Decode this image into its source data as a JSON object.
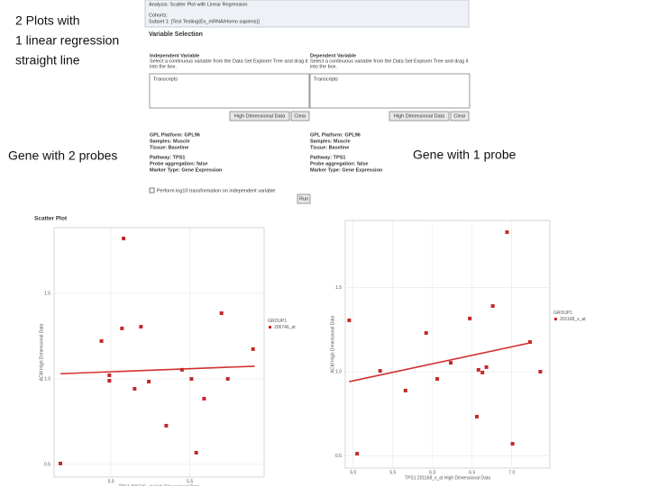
{
  "annotations": {
    "top_left": [
      "2 Plots with",
      "1 linear regression",
      "straight line"
    ],
    "left": "Gene with 2 probes",
    "right": "Gene with 1 probe"
  },
  "panel": {
    "title": "Analysis: Scatter Plot with Linear Regression",
    "cohorts_label": "Cohorts:",
    "cohorts_value": "Subset 1: [Test Testing(Ex_mRNA/Homo sapiens)]",
    "section": "Variable Selection",
    "independent": {
      "title": "Independent Variable",
      "description": [
        "Select a continuous variable from the Data Set Explorer Tree and drag it",
        "into the box."
      ],
      "box": "Transcripts",
      "button": "High Dimensional Data",
      "clear": "Clear",
      "info": [
        "GPL Platform: GPL96",
        "Samples: Muscle",
        "Tissue: Baseline",
        "Pathway: TPS1",
        "Probe aggregation: false",
        "Marker Type: Gene Expression"
      ]
    },
    "dependent": {
      "title": "Dependent Variable",
      "description": [
        "Select a continuous variable from the Data Set Explorer Tree and drag it",
        "into the box."
      ],
      "box": "Transcripts",
      "button": "High Dimensional Data",
      "clear": "Clear",
      "info": [
        "GPL Platform: GPL96",
        "Samples: Muscle",
        "Tissue: Baseline",
        "Pathway: TPS1",
        "Probe aggregation: false",
        "Marker Type: Gene Expression"
      ]
    },
    "checkbox": "Perform log10 transformation on independent variable",
    "run": "Run"
  },
  "chart_data": [
    {
      "type": "scatter",
      "title": "Scatter Plot",
      "x_label": "TPS1 206746_at High Dimensional Data",
      "y_label": "ACM High Dimensional Data",
      "legend_title": "GROUP1",
      "series": [
        {
          "name": "206746_at",
          "color": "#c62828",
          "x": [
            4.68,
            4.94,
            4.99,
            4.99,
            5.08,
            5.07,
            5.15,
            5.19,
            5.24,
            5.35,
            5.45,
            5.51,
            5.54,
            5.59,
            5.7,
            5.74,
            5.9
          ],
          "values": [
            0.505,
            1.221,
            1.021,
            0.989,
            1.821,
            1.295,
            0.942,
            1.305,
            0.984,
            0.726,
            1.053,
            1.0,
            0.568,
            0.884,
            1.384,
            1.0,
            1.174
          ]
        }
      ],
      "regression": {
        "color": "#d32f2f",
        "x": [
          4.68,
          5.91
        ],
        "y": [
          1.03,
          1.074
        ]
      },
      "xlim": [
        4.64,
        5.97
      ],
      "ylim": [
        0.426,
        1.884
      ],
      "xticks": [
        {
          "value": 5,
          "label": "5.0"
        },
        5.5
      ],
      "yticks": [
        0.5,
        {
          "value": 1,
          "label": "1.0"
        },
        1.5
      ],
      "grid": true
    },
    {
      "type": "scatter",
      "x_label": "TPS1 201168_x_at High Dimensional Data",
      "y_label": "ACM High Dimensional Data",
      "legend_title": "GROUP1",
      "series": [
        {
          "name": "201168_x_at",
          "color": "#c62828",
          "x": [
            4.95,
            5.05,
            5.34,
            5.66,
            5.92,
            6.06,
            6.23,
            6.47,
            6.56,
            6.58,
            6.63,
            6.68,
            6.76,
            6.94,
            7.01,
            7.23,
            7.36
          ],
          "values": [
            1.305,
            0.513,
            1.005,
            0.888,
            1.23,
            0.957,
            1.053,
            1.316,
            0.733,
            1.011,
            0.995,
            1.027,
            1.39,
            1.829,
            0.572,
            1.176,
            1.0
          ]
        }
      ],
      "regression": {
        "color": "#d32f2f",
        "x": [
          4.95,
          7.23
        ],
        "y": [
          0.941,
          1.171
        ]
      },
      "xlim": [
        4.9,
        7.48
      ],
      "ylim": [
        0.428,
        1.898
      ],
      "xticks": [
        {
          "value": 5,
          "label": "5.0"
        },
        5.5,
        {
          "value": 6,
          "label": "6.0"
        },
        6.5,
        {
          "value": 7,
          "label": "7.0"
        }
      ],
      "yticks": [
        0.5,
        {
          "value": 1,
          "label": "1.0"
        },
        1.5
      ],
      "grid": true
    }
  ]
}
